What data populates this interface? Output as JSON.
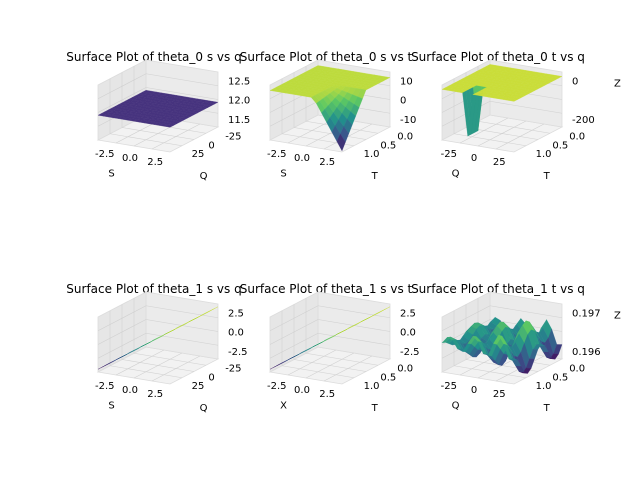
{
  "chart_data": [
    {
      "type": "surface",
      "title": "Surface Plot of theta_0 s vs q",
      "xlabel": "S",
      "ylabel": "Q",
      "zlabel": "",
      "xticks": [
        "-2.5",
        "0.0",
        "2.5"
      ],
      "yticks": [
        "25",
        "0",
        "-25"
      ],
      "zticks": [
        "12.5",
        "12.0",
        "11.5"
      ],
      "xlim": [
        -4,
        4
      ],
      "ylim": [
        -40,
        40
      ],
      "zlim": [
        11.4,
        12.7
      ],
      "surface": "flat",
      "z_value": 12.0,
      "colormap": "viridis",
      "color_hint": "#46337e"
    },
    {
      "type": "surface",
      "title": "Surface Plot of theta_0 s vs t",
      "xlabel": "S",
      "ylabel": "T",
      "zlabel": "",
      "xticks": [
        "-2.5",
        "0.0",
        "2.5"
      ],
      "yticks": [
        "1.0",
        "0.5",
        "0.0"
      ],
      "zticks": [
        "10",
        "0",
        "-10"
      ],
      "xlim": [
        -4,
        4
      ],
      "ylim": [
        0,
        1.2
      ],
      "zlim": [
        -15,
        12
      ],
      "surface": "flat plateau near 10 dropping sharply toward -15 at large S, small T",
      "colormap": "viridis",
      "color_hint": "#fde725"
    },
    {
      "type": "surface",
      "title": "Surface Plot of theta_0 t vs q",
      "xlabel": "Q",
      "ylabel": "T",
      "zlabel": "Z",
      "xticks": [
        "-25",
        "0",
        "25"
      ],
      "yticks": [
        "1.0",
        "0.5",
        "0.0"
      ],
      "zticks": [
        "0",
        "-200"
      ],
      "xlim": [
        -40,
        40
      ],
      "ylim": [
        0,
        1.2
      ],
      "zlim": [
        -260,
        20
      ],
      "surface": "flat near 0 with a narrow deep spike near T = 0",
      "colormap": "viridis",
      "color_hint": "#fde725"
    },
    {
      "type": "surface",
      "title": "Surface Plot of theta_1 s vs q",
      "xlabel": "S",
      "ylabel": "Q",
      "zlabel": "",
      "xticks": [
        "-2.5",
        "0.0",
        "2.5"
      ],
      "yticks": [
        "25",
        "0",
        "-25"
      ],
      "zticks": [
        "2.5",
        "0.0",
        "-2.5"
      ],
      "xlim": [
        -4,
        4
      ],
      "ylim": [
        -40,
        40
      ],
      "zlim": [
        -4,
        4
      ],
      "surface": "plane, z increases linearly with S",
      "colormap": "viridis"
    },
    {
      "type": "surface",
      "title": "Surface Plot of theta_1 s vs t",
      "xlabel": "X",
      "ylabel": "T",
      "zlabel": "",
      "xticks": [
        "-2.5",
        "0.0",
        "2.5"
      ],
      "yticks": [
        "1.0",
        "0.5",
        "0.0"
      ],
      "zticks": [
        "2.5",
        "0.0",
        "-2.5"
      ],
      "xlim": [
        -4,
        4
      ],
      "ylim": [
        0,
        1.2
      ],
      "zlim": [
        -4,
        4
      ],
      "surface": "plane, z increases linearly with X",
      "colormap": "viridis"
    },
    {
      "type": "surface",
      "title": "Surface Plot of theta_1 t vs q",
      "xlabel": "Q",
      "ylabel": "T",
      "zlabel": "Z",
      "xticks": [
        "-25",
        "0",
        "25"
      ],
      "yticks": [
        "1.0",
        "0.5",
        "0.0"
      ],
      "zticks": [
        "0.197",
        "0.196"
      ],
      "xlim": [
        -40,
        40
      ],
      "ylim": [
        0,
        1.2
      ],
      "zlim": [
        0.1955,
        0.1975
      ],
      "surface": "irregular ridges with tall spikes",
      "colormap": "viridis"
    }
  ]
}
